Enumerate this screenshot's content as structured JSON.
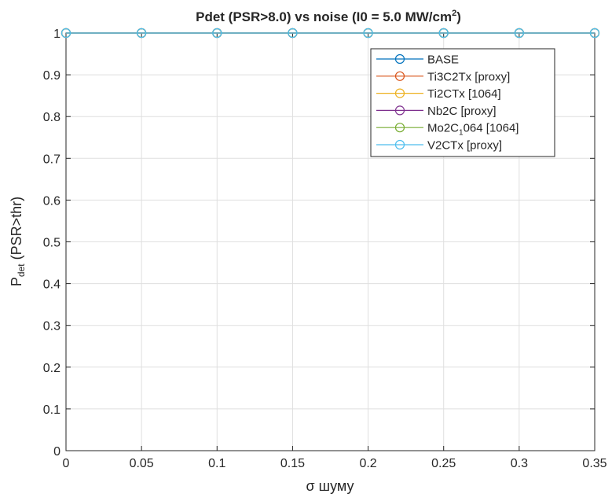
{
  "chart_data": {
    "type": "line",
    "title_parts": {
      "main": "Pdet  (PSR>8.0)  vs  noise  (I0  =  5.0  MW/cm",
      "sup": "2",
      "end": ")"
    },
    "xlabel": "σ шуму",
    "ylabel_parts": {
      "main": "P",
      "sub": "det",
      "rest": " (PSR>thr)"
    },
    "xlim": [
      0,
      0.35
    ],
    "ylim": [
      0,
      1
    ],
    "xticks": [
      0,
      0.05,
      0.1,
      0.15,
      0.2,
      0.25,
      0.3,
      0.35
    ],
    "xtick_labels": [
      "0",
      "0.05",
      "0.1",
      "0.15",
      "0.2",
      "0.25",
      "0.3",
      "0.35"
    ],
    "yticks": [
      0,
      0.1,
      0.2,
      0.3,
      0.4,
      0.5,
      0.6,
      0.7,
      0.8,
      0.9,
      1
    ],
    "ytick_labels": [
      "0",
      "0.1",
      "0.2",
      "0.3",
      "0.4",
      "0.5",
      "0.6",
      "0.7",
      "0.8",
      "0.9",
      "1"
    ],
    "grid": true,
    "legend_position": "top-right",
    "x": [
      0,
      0.05,
      0.1,
      0.15,
      0.2,
      0.25,
      0.3,
      0.35
    ],
    "series": [
      {
        "name": "BASE",
        "color": "#0072BD",
        "values": [
          1,
          1,
          1,
          1,
          1,
          1,
          1,
          1
        ]
      },
      {
        "name": "Ti3C2Tx [proxy]",
        "color": "#D95319",
        "values": [
          1,
          1,
          1,
          1,
          1,
          1,
          1,
          1
        ]
      },
      {
        "name": "Ti2CTx [1064]",
        "color": "#EDB120",
        "values": [
          1,
          1,
          1,
          1,
          1,
          1,
          1,
          1
        ]
      },
      {
        "name": "Nb2C [proxy]",
        "color": "#7E2F8E",
        "values": [
          1,
          1,
          1,
          1,
          1,
          1,
          1,
          1
        ]
      },
      {
        "name": "Mo2C",
        "name_sub": "1",
        "name_rest": "064  [1064]",
        "color": "#77AC30",
        "values": [
          1,
          1,
          1,
          1,
          1,
          1,
          1,
          1
        ]
      },
      {
        "name": "V2CTx [proxy]",
        "color": "#4DBEEE",
        "values": [
          1,
          1,
          1,
          1,
          1,
          1,
          1,
          1
        ]
      }
    ]
  }
}
